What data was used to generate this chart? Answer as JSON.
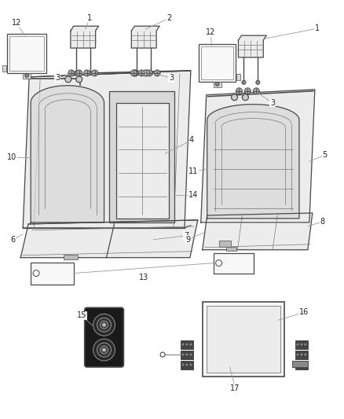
{
  "bg": "#ffffff",
  "lc": "#4a4a4a",
  "lc_thin": "#777777",
  "lw": 0.9,
  "lw_thin": 0.5,
  "label_fs": 7,
  "label_color": "#222222",
  "fig_w": 4.38,
  "fig_h": 5.33,
  "dpi": 100
}
